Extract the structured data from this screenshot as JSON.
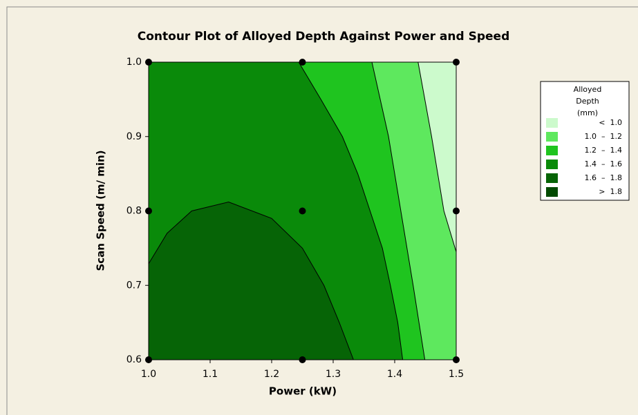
{
  "chart_data": {
    "type": "contour",
    "title": "Contour Plot of Alloyed Depth Against Power and Speed",
    "x_label": "Power (kW)",
    "y_label": "Scan Speed (m/ min)",
    "xlim": [
      1.0,
      1.5
    ],
    "ylim": [
      0.6,
      1.0
    ],
    "xticks": [
      {
        "value": 1.0,
        "label": "1.0"
      },
      {
        "value": 1.1,
        "label": "1.1"
      },
      {
        "value": 1.2,
        "label": "1.2"
      },
      {
        "value": 1.3,
        "label": "1.3"
      },
      {
        "value": 1.4,
        "label": "1.4"
      },
      {
        "value": 1.5,
        "label": "1.5"
      }
    ],
    "yticks": [
      {
        "value": 0.6,
        "label": "0.6"
      },
      {
        "value": 0.7,
        "label": "0.7"
      },
      {
        "value": 0.8,
        "label": "0.8"
      },
      {
        "value": 0.9,
        "label": "0.9"
      },
      {
        "value": 1.0,
        "label": "1.0"
      }
    ],
    "base_color": "#0a8a0a",
    "contours": [
      {
        "level": 1.6,
        "color": "#066406",
        "x": [
          1.333,
          1.31,
          1.285,
          1.25,
          1.2,
          1.13,
          1.07,
          1.03,
          1.0
        ],
        "y": [
          0.6,
          0.65,
          0.7,
          0.75,
          0.79,
          0.812,
          0.8,
          0.77,
          0.729
        ]
      },
      {
        "level": 1.4,
        "color": "#1fc41f",
        "x": [
          1.244,
          1.28,
          1.315,
          1.34,
          1.36,
          1.38,
          1.393,
          1.405,
          1.413
        ],
        "y": [
          1.0,
          0.95,
          0.9,
          0.85,
          0.8,
          0.75,
          0.7,
          0.65,
          0.6
        ]
      },
      {
        "level": 1.2,
        "color": "#5ee85e",
        "x": [
          1.363,
          1.39,
          1.41,
          1.43,
          1.449
        ],
        "y": [
          1.0,
          0.9,
          0.8,
          0.7,
          0.6
        ]
      },
      {
        "level": 1.0,
        "color": "#ccfacc",
        "x": [
          1.438,
          1.46,
          1.48,
          1.5
        ],
        "y": [
          1.0,
          0.9,
          0.8,
          0.745
        ]
      }
    ],
    "points": {
      "color": "#000000",
      "x": [
        1.0,
        1.0,
        1.0,
        1.25,
        1.25,
        1.25,
        1.5,
        1.5,
        1.5
      ],
      "y": [
        0.6,
        0.8,
        1.0,
        0.6,
        0.8,
        1.0,
        0.6,
        0.8,
        1.0
      ]
    },
    "legend": {
      "title": [
        "Alloyed",
        "Depth",
        "(mm)"
      ],
      "entries": [
        {
          "label": "<  1.0",
          "color": "#ccfacc"
        },
        {
          "label": "1.0  –  1.2",
          "color": "#5ee85e"
        },
        {
          "label": "1.2  –  1.4",
          "color": "#1fc41f"
        },
        {
          "label": "1.4  –  1.6",
          "color": "#0a8a0a"
        },
        {
          "label": "1.6  –  1.8",
          "color": "#066406"
        },
        {
          "label": ">  1.8",
          "color": "#024a02"
        }
      ]
    }
  }
}
